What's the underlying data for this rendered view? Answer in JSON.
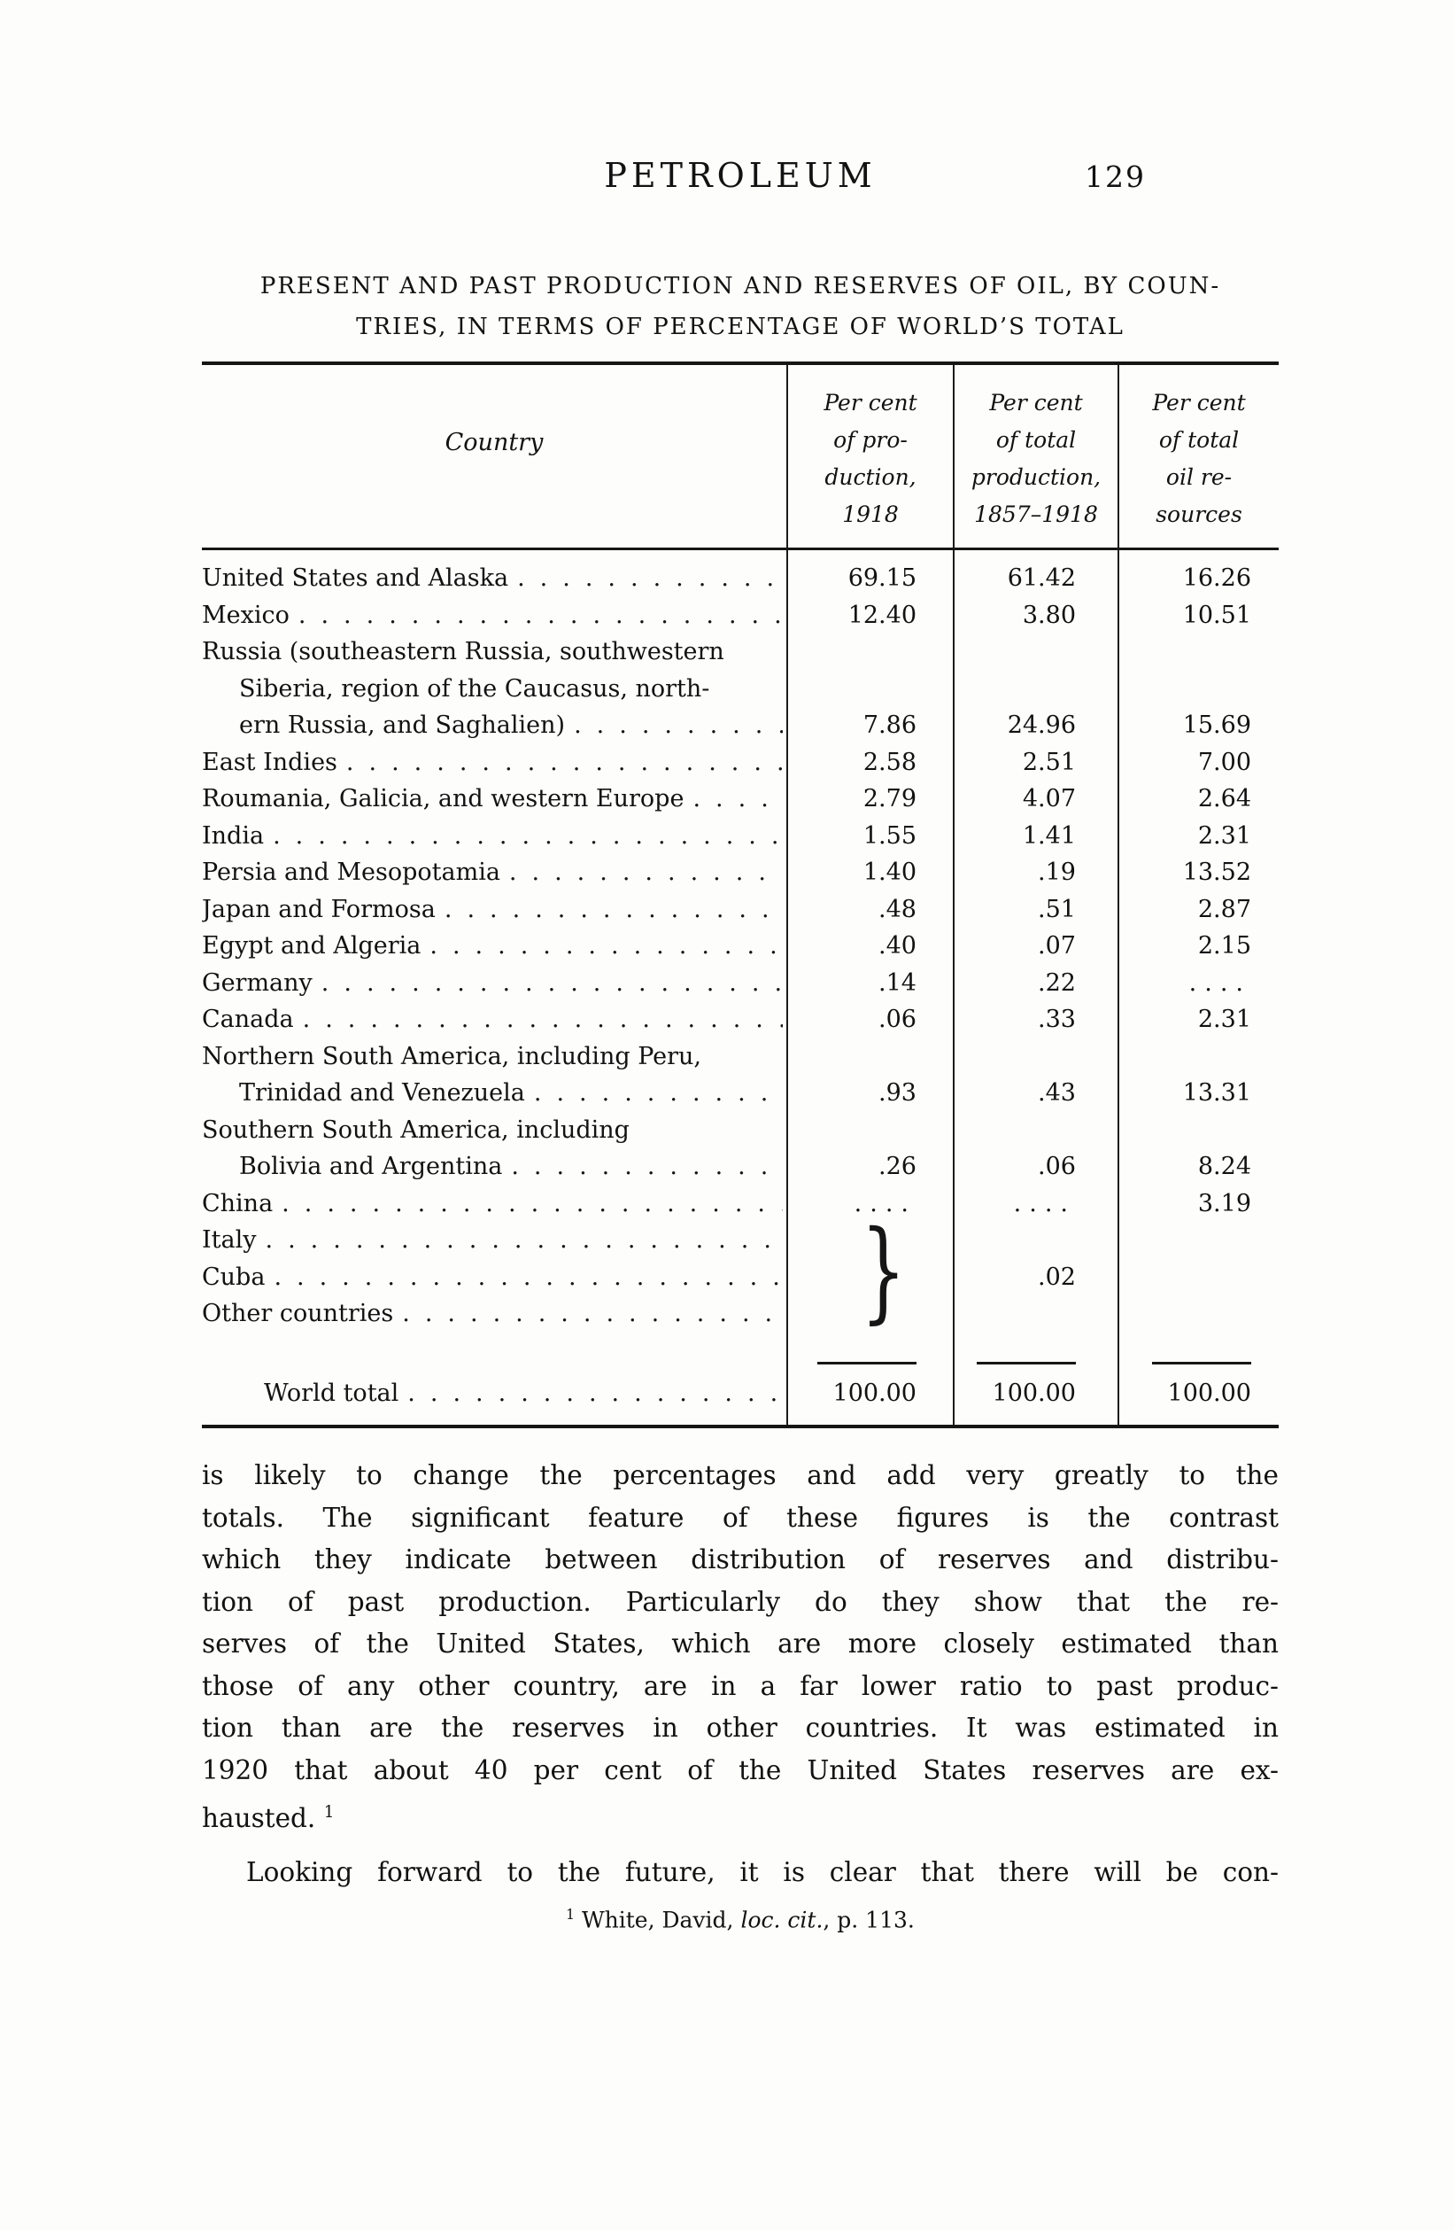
{
  "header": {
    "running_title": "PETROLEUM",
    "page_number": "129"
  },
  "caption": {
    "line1": "PRESENT AND PAST PRODUCTION AND RESERVES OF OIL, BY COUN-",
    "line2": "TRIES, IN TERMS OF PERCENTAGE OF WORLD’S TOTAL"
  },
  "table": {
    "country_header": "Country",
    "col_headers": [
      {
        "lines": [
          "Per cent",
          "of pro-",
          "duction,",
          "1918"
        ]
      },
      {
        "lines": [
          "Per cent",
          "of total",
          "production,",
          "1857–1918"
        ]
      },
      {
        "lines": [
          "Per cent",
          "of total",
          "oil re-",
          "sources"
        ]
      }
    ],
    "lines": [
      {
        "text": "United States and Alaska",
        "indent": 0,
        "leader": true,
        "v1": "69.15",
        "v2": "61.42",
        "v3": "16.26"
      },
      {
        "text": "Mexico",
        "indent": 0,
        "leader": true,
        "v1": "12.40",
        "v2": "3.80",
        "v3": "10.51"
      },
      {
        "text": "Russia (southeastern Russia, southwestern",
        "indent": 0,
        "leader": false,
        "v1": "",
        "v2": "",
        "v3": ""
      },
      {
        "text": "Siberia, region of the Caucasus, north-",
        "indent": 1,
        "leader": false,
        "v1": "",
        "v2": "",
        "v3": ""
      },
      {
        "text": "ern Russia, and Saghalien)",
        "indent": 1,
        "leader": true,
        "v1": "7.86",
        "v2": "24.96",
        "v3": "15.69"
      },
      {
        "text": "East Indies",
        "indent": 0,
        "leader": true,
        "v1": "2.58",
        "v2": "2.51",
        "v3": "7.00"
      },
      {
        "text": "Roumania, Galicia, and western Europe",
        "indent": 0,
        "leader": true,
        "v1": "2.79",
        "v2": "4.07",
        "v3": "2.64"
      },
      {
        "text": "India",
        "indent": 0,
        "leader": true,
        "v1": "1.55",
        "v2": "1.41",
        "v3": "2.31"
      },
      {
        "text": "Persia and Mesopotamia",
        "indent": 0,
        "leader": true,
        "v1": "1.40",
        "v2": ".19",
        "v3": "13.52"
      },
      {
        "text": "Japan and Formosa",
        "indent": 0,
        "leader": true,
        "v1": ".48",
        "v2": ".51",
        "v3": "2.87"
      },
      {
        "text": "Egypt and Algeria",
        "indent": 0,
        "leader": true,
        "v1": ".40",
        "v2": ".07",
        "v3": "2.15"
      },
      {
        "text": "Germany",
        "indent": 0,
        "leader": true,
        "v1": ".14",
        "v2": ".22",
        "v3": "...."
      },
      {
        "text": "Canada",
        "indent": 0,
        "leader": true,
        "v1": ".06",
        "v2": ".33",
        "v3": "2.31"
      },
      {
        "text": "Northern South America, including Peru,",
        "indent": 0,
        "leader": false,
        "v1": "",
        "v2": "",
        "v3": ""
      },
      {
        "text": "Trinidad and Venezuela",
        "indent": 1,
        "leader": true,
        "v1": ".93",
        "v2": ".43",
        "v3": "13.31"
      },
      {
        "text": "Southern South America, including",
        "indent": 0,
        "leader": false,
        "v1": "",
        "v2": "",
        "v3": ""
      },
      {
        "text": "Bolivia and Argentina",
        "indent": 1,
        "leader": true,
        "v1": ".26",
        "v2": ".06",
        "v3": "8.24"
      },
      {
        "text": "China",
        "indent": 0,
        "leader": true,
        "v1": "....",
        "v2": "....",
        "v3": "3.19"
      },
      {
        "text": "Italy",
        "indent": 0,
        "leader": true,
        "v1": "",
        "v2": "",
        "v3": ""
      },
      {
        "text": "Cuba",
        "indent": 0,
        "leader": true,
        "v1": "",
        "v2": ".02",
        "v3": ""
      },
      {
        "text": "Other countries",
        "indent": 0,
        "leader": true,
        "v1": "",
        "v2": "",
        "v3": ""
      }
    ],
    "world_total": {
      "text": "World total",
      "v1": "100.00",
      "v2": "100.00",
      "v3": "100.00"
    },
    "brace_glyph": "}"
  },
  "body": {
    "justified_lines": [
      "is likely to change the percentages and add very greatly to the",
      "totals.  The significant feature of these figures is the contrast",
      "which they indicate between distribution of reserves and distribu-",
      "tion of past production.  Particularly do they show that the re-",
      "serves of the United States, which are more closely estimated than",
      "those of any other country, are in a far lower ratio to past produc-",
      "tion than are the reserves in other countries.  It was estimated in",
      "1920 that about 40 per cent of the United States reserves are ex-"
    ],
    "last_line": "hausted.",
    "last_line_sup": "1",
    "para2_line": "Looking forward to the future, it is clear that there will be con-"
  },
  "footnote": {
    "marker": "1",
    "pre": " White, David, ",
    "italic": "loc. cit.",
    "post": ", p. 113."
  }
}
